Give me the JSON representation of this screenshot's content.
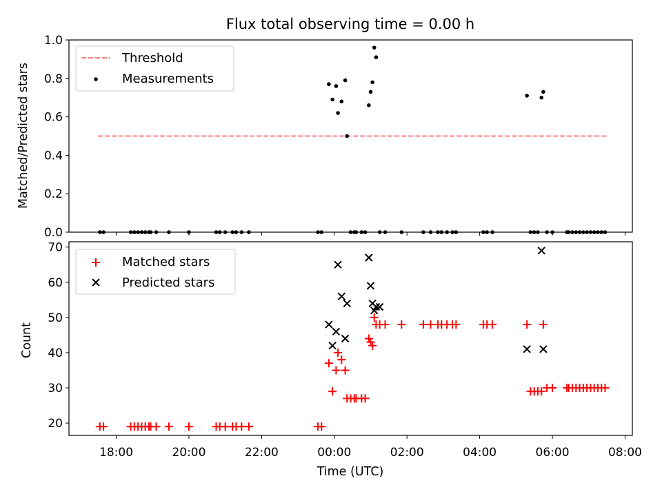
{
  "figure": {
    "title": "Flux total observing time = 0.00 h"
  },
  "chart_data": [
    {
      "type": "line",
      "title": "Flux total observing time = 0.00 h",
      "xlabel": "",
      "ylabel": "Matched/Predicted stars",
      "xlim": [
        -7.3,
        8.2
      ],
      "ylim": [
        0,
        1.0
      ],
      "x_ticks": [
        -6,
        -4,
        -2,
        0,
        2,
        4,
        6,
        8
      ],
      "y_ticks": [
        0.0,
        0.2,
        0.4,
        0.6,
        0.8,
        1.0
      ],
      "y_tick_labels": [
        "0.0",
        "0.2",
        "0.4",
        "0.6",
        "0.8",
        "1.0"
      ],
      "legend_position": "upper-left",
      "series": [
        {
          "name": "Threshold",
          "kind": "line",
          "style": "dashed",
          "color": "#ff7f7f",
          "x": [
            -6.5,
            7.5
          ],
          "y": [
            0.5,
            0.5
          ]
        },
        {
          "name": "Measurements",
          "kind": "scatter",
          "marker": "dot",
          "color": "#000000",
          "x": [
            -6.45,
            -6.35,
            -5.6,
            -5.5,
            -5.4,
            -5.3,
            -5.2,
            -5.1,
            -5.05,
            -4.9,
            -4.55,
            -4.0,
            -3.25,
            -3.15,
            -3.0,
            -2.8,
            -2.7,
            -2.55,
            -2.35,
            -0.45,
            -0.35,
            -0.15,
            -0.05,
            0.05,
            0.1,
            0.2,
            0.3,
            0.35,
            0.45,
            0.55,
            0.6,
            0.75,
            0.85,
            0.95,
            1.0,
            1.05,
            1.1,
            1.15,
            1.25,
            1.4,
            1.85,
            2.45,
            2.65,
            2.85,
            2.95,
            3.1,
            3.25,
            3.35,
            4.1,
            4.2,
            4.35,
            5.3,
            5.4,
            5.5,
            5.6,
            5.7,
            5.75,
            5.85,
            6.0,
            6.4,
            6.45,
            6.55,
            6.65,
            6.75,
            6.85,
            6.95,
            7.05,
            7.15,
            7.25,
            7.35,
            7.45
          ],
          "y": [
            0,
            0,
            0,
            0,
            0,
            0,
            0,
            0,
            0,
            0,
            0,
            0,
            0,
            0,
            0,
            0,
            0,
            0,
            0,
            0,
            0,
            0.77,
            0.69,
            0.76,
            0.62,
            0.68,
            0.79,
            0.5,
            0,
            0,
            0,
            0,
            0,
            0.66,
            0.73,
            0.78,
            0.96,
            0.91,
            0,
            0,
            0,
            0,
            0,
            0,
            0,
            0,
            0,
            0,
            0,
            0,
            0,
            0.71,
            0,
            0,
            0,
            0.7,
            0.73,
            0,
            0,
            0,
            0,
            0,
            0,
            0,
            0,
            0,
            0,
            0,
            0,
            0,
            0
          ]
        }
      ]
    },
    {
      "type": "scatter",
      "title": "",
      "xlabel": "Time (UTC)",
      "ylabel": "Count",
      "xlim": [
        -7.3,
        8.2
      ],
      "ylim": [
        16.5,
        71.5
      ],
      "x_ticks": [
        -6,
        -4,
        -2,
        0,
        2,
        4,
        6,
        8
      ],
      "x_tick_labels": [
        "18:00",
        "20:00",
        "22:00",
        "00:00",
        "02:00",
        "04:00",
        "06:00",
        "08:00"
      ],
      "y_ticks": [
        20,
        30,
        40,
        50,
        60,
        70
      ],
      "y_tick_labels": [
        "20",
        "30",
        "40",
        "50",
        "60",
        "70"
      ],
      "legend_position": "upper-left",
      "series": [
        {
          "name": "Matched stars",
          "marker": "+",
          "color": "#ff0000",
          "x": [
            -6.45,
            -6.35,
            -5.6,
            -5.5,
            -5.4,
            -5.3,
            -5.2,
            -5.1,
            -5.05,
            -4.9,
            -4.55,
            -4.0,
            -3.25,
            -3.15,
            -3.0,
            -2.8,
            -2.7,
            -2.55,
            -2.35,
            -0.45,
            -0.35,
            -0.15,
            -0.05,
            0.05,
            0.1,
            0.2,
            0.3,
            0.35,
            0.45,
            0.55,
            0.6,
            0.75,
            0.85,
            0.95,
            1.0,
            1.05,
            1.1,
            1.15,
            1.25,
            1.4,
            1.85,
            2.45,
            2.65,
            2.85,
            2.95,
            3.1,
            3.25,
            3.35,
            4.1,
            4.2,
            4.35,
            5.3,
            5.4,
            5.5,
            5.6,
            5.7,
            5.75,
            5.85,
            6.0,
            6.4,
            6.45,
            6.55,
            6.65,
            6.75,
            6.85,
            6.95,
            7.05,
            7.15,
            7.25,
            7.35,
            7.45
          ],
          "y": [
            19,
            19,
            19,
            19,
            19,
            19,
            19,
            19,
            19,
            19,
            19,
            19,
            19,
            19,
            19,
            19,
            19,
            19,
            19,
            19,
            19,
            37,
            29,
            35,
            40,
            38,
            35,
            27,
            27,
            27,
            27,
            27,
            27,
            44,
            43,
            42,
            50,
            48,
            48,
            48,
            48,
            48,
            48,
            48,
            48,
            48,
            48,
            48,
            48,
            48,
            48,
            48,
            29,
            29,
            29,
            29,
            48,
            30,
            30,
            30,
            30,
            30,
            30,
            30,
            30,
            30,
            30,
            30,
            30,
            30,
            30
          ]
        },
        {
          "name": "Predicted stars",
          "marker": "x",
          "color": "#000000",
          "x": [
            -0.15,
            -0.05,
            0.05,
            0.1,
            0.2,
            0.3,
            0.35,
            0.95,
            1.0,
            1.05,
            1.1,
            1.15,
            1.25,
            5.3,
            5.7,
            5.75
          ],
          "y": [
            48,
            42,
            46,
            65,
            56,
            44,
            54,
            67,
            59,
            54,
            52,
            53,
            53,
            41,
            69,
            41
          ]
        }
      ]
    }
  ]
}
